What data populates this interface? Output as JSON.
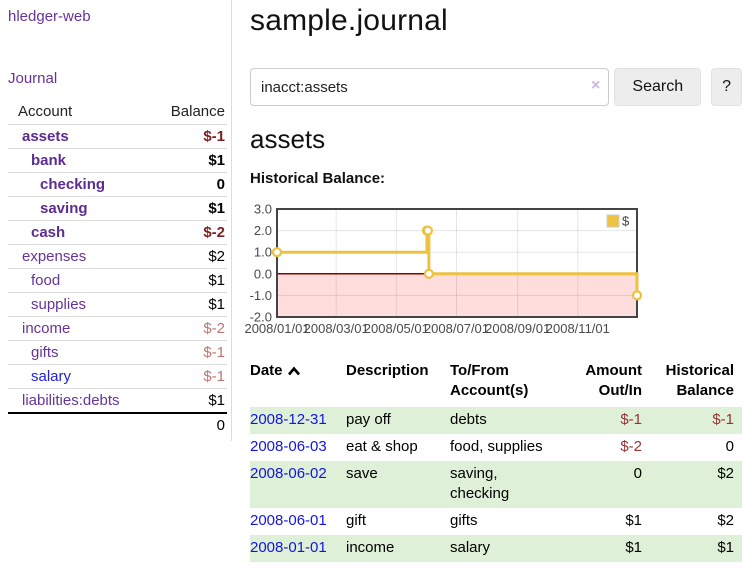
{
  "brand": "hledger-web",
  "nav": {
    "journal": "Journal"
  },
  "sidebar": {
    "headers": {
      "account": "Account",
      "balance": "Balance"
    },
    "accounts": [
      {
        "name": "assets",
        "balance": "$-1",
        "indent": 1,
        "bold": true,
        "balance_tone": "neg-strong"
      },
      {
        "name": "bank",
        "balance": "$1",
        "indent": 2,
        "bold": true,
        "balance_tone": "pos"
      },
      {
        "name": "checking",
        "balance": "0",
        "indent": 3,
        "bold": true,
        "balance_tone": "pos"
      },
      {
        "name": "saving",
        "balance": "$1",
        "indent": 3,
        "bold": true,
        "balance_tone": "pos"
      },
      {
        "name": "cash",
        "balance": "$-2",
        "indent": 2,
        "bold": true,
        "balance_tone": "neg-strong"
      },
      {
        "name": "expenses",
        "balance": "$2",
        "indent": 1,
        "bold": false,
        "balance_tone": "pos"
      },
      {
        "name": "food",
        "balance": "$1",
        "indent": 2,
        "bold": false,
        "balance_tone": "pos"
      },
      {
        "name": "supplies",
        "balance": "$1",
        "indent": 2,
        "bold": false,
        "balance_tone": "pos"
      },
      {
        "name": "income",
        "balance": "$-2",
        "indent": 1,
        "bold": false,
        "balance_tone": "neg-soft"
      },
      {
        "name": "gifts",
        "balance": "$-1",
        "indent": 2,
        "bold": false,
        "balance_tone": "neg-soft"
      },
      {
        "name": "salary",
        "balance": "$-1",
        "indent": 2,
        "bold": false,
        "balance_tone": "neg-soft",
        "link_tone": "blue"
      },
      {
        "name": "liabilities:debts",
        "balance": "$1",
        "indent": 1,
        "bold": false,
        "balance_tone": "pos"
      }
    ],
    "total": "0"
  },
  "main": {
    "title": "sample.journal",
    "account_title": "assets"
  },
  "search": {
    "value": "inacct:assets",
    "clear_icon": "×",
    "button_label": "Search",
    "help_label": "?"
  },
  "chart_data": {
    "type": "line",
    "style": "steps",
    "title": "Historical Balance:",
    "legend": {
      "label": "$",
      "position": "top-right"
    },
    "ylim": [
      -2,
      3
    ],
    "y_ticks": [
      {
        "label": "3.0",
        "value": 3
      },
      {
        "label": "2.0",
        "value": 2
      },
      {
        "label": "1.0",
        "value": 1
      },
      {
        "label": "0.0",
        "value": 0
      },
      {
        "label": "-1.0",
        "value": -1
      },
      {
        "label": "-2.0",
        "value": -2
      }
    ],
    "x_ticks": [
      {
        "label": "2008/01/01",
        "day": 0
      },
      {
        "label": "2008/03/01",
        "day": 60
      },
      {
        "label": "2008/05/01",
        "day": 121
      },
      {
        "label": "2008/07/01",
        "day": 182
      },
      {
        "label": "2008/09/01",
        "day": 244
      },
      {
        "label": "2008/11/01",
        "day": 305
      }
    ],
    "x_range_days": 365,
    "series": [
      {
        "name": "$",
        "points": [
          {
            "date": "2008-01-01",
            "day": 0,
            "value": 1
          },
          {
            "date": "2008-06-01",
            "day": 152,
            "value": 2
          },
          {
            "date": "2008-06-02",
            "day": 153,
            "value": 2
          },
          {
            "date": "2008-06-03",
            "day": 154,
            "value": 0
          },
          {
            "date": "2008-12-31",
            "day": 365,
            "value": -1
          }
        ]
      }
    ],
    "line_color": "#edc240",
    "negative_region_fill": "#ffdddd",
    "zero_line_color": "#880000",
    "border_color": "#444444",
    "grid": true
  },
  "register": {
    "headers": {
      "date": "Date",
      "description": "Description",
      "tofrom": "To/From Account(s)",
      "amount": "Amount Out/In",
      "balance": "Historical Balance"
    },
    "rows": [
      {
        "date": "2008-12-31",
        "description": "pay off",
        "accounts": "debts",
        "amount": "$-1",
        "balance": "$-1"
      },
      {
        "date": "2008-06-03",
        "description": "eat & shop",
        "accounts": "food, supplies",
        "amount": "$-2",
        "balance": "0"
      },
      {
        "date": "2008-06-02",
        "description": "save",
        "accounts": "saving, checking",
        "amount": "0",
        "balance": "$2"
      },
      {
        "date": "2008-06-01",
        "description": "gift",
        "accounts": "gifts",
        "amount": "$1",
        "balance": "$2"
      },
      {
        "date": "2008-01-01",
        "description": "income",
        "accounts": "salary",
        "amount": "$1",
        "balance": "$1"
      }
    ]
  },
  "colors": {
    "link_purple": "#663399",
    "link_blue": "#2222dd",
    "date_link_blue": "#1414e0",
    "negative_strong": "#7d1f1f",
    "negative_soft": "#c07575",
    "negative_register": "#953232",
    "row_green": "#dff0d8",
    "chart_line_gold": "#edc240",
    "chart_negative_fill": "#ffdddd",
    "chart_zero_line": "#880000"
  }
}
